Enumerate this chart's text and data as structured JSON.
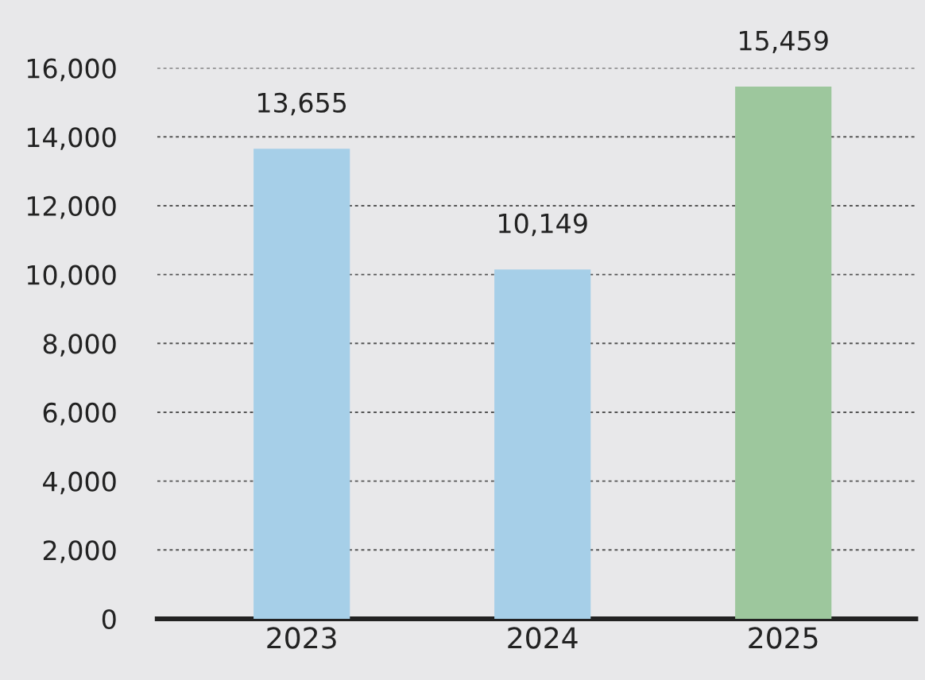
{
  "chart_data": {
    "type": "bar",
    "categories": [
      "2023",
      "2024",
      "2025"
    ],
    "values": [
      13655,
      10149,
      15459
    ],
    "colors": [
      "#a6cfe8",
      "#a6cfe8",
      "#9dc79d"
    ],
    "value_labels": [
      "13,655",
      "10,149",
      "15,459"
    ],
    "ylim": [
      0,
      16000
    ],
    "yticks": [
      {
        "value": 0,
        "label": "0"
      },
      {
        "value": 2000,
        "label": "2,000"
      },
      {
        "value": 4000,
        "label": "4,000"
      },
      {
        "value": 6000,
        "label": "6,000"
      },
      {
        "value": 8000,
        "label": "8,000"
      },
      {
        "value": 10000,
        "label": "10,000"
      },
      {
        "value": 12000,
        "label": "12,000"
      },
      {
        "value": 14000,
        "label": "14,000"
      },
      {
        "value": 16000,
        "label": "16,000"
      }
    ],
    "grid": "y"
  }
}
